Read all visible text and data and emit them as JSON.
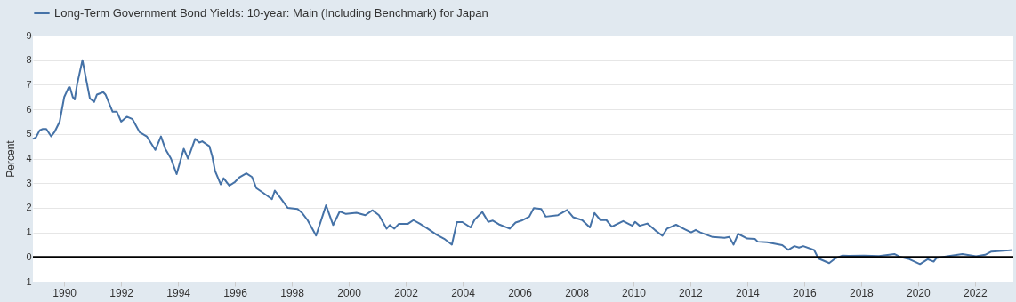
{
  "chart_data": {
    "type": "line",
    "ylabel": "Percent",
    "x": [
      1988.9,
      1989.0,
      1989.14,
      1989.25,
      1989.37,
      1989.54,
      1989.67,
      1989.84,
      1990.0,
      1990.16,
      1990.2,
      1990.3,
      1990.37,
      1990.45,
      1990.64,
      1990.9,
      1991.05,
      1991.15,
      1991.37,
      1991.45,
      1991.7,
      1991.85,
      1992.0,
      1992.2,
      1992.4,
      1992.65,
      1992.9,
      1993.2,
      1993.4,
      1993.55,
      1993.75,
      1993.95,
      1994.2,
      1994.35,
      1994.6,
      1994.75,
      1994.85,
      1995.1,
      1995.2,
      1995.3,
      1995.5,
      1995.6,
      1995.8,
      1996.0,
      1996.17,
      1996.4,
      1996.6,
      1996.75,
      1997.0,
      1997.3,
      1997.4,
      1997.6,
      1997.85,
      1998.2,
      1998.35,
      1998.55,
      1998.85,
      1999.2,
      1999.45,
      1999.68,
      1999.9,
      2000.27,
      2000.58,
      2000.83,
      2001.06,
      2001.33,
      2001.44,
      2001.6,
      2001.76,
      2002.08,
      2002.27,
      2002.5,
      2002.77,
      2003.09,
      2003.35,
      2003.62,
      2003.8,
      2003.99,
      2004.28,
      2004.42,
      2004.69,
      2004.9,
      2005.06,
      2005.27,
      2005.65,
      2005.86,
      2006.07,
      2006.34,
      2006.5,
      2006.76,
      2006.92,
      2007.35,
      2007.67,
      2007.88,
      2008.2,
      2008.47,
      2008.63,
      2008.84,
      2009.05,
      2009.24,
      2009.64,
      2009.96,
      2010.06,
      2010.22,
      2010.49,
      2010.76,
      2011.02,
      2011.18,
      2011.5,
      2011.82,
      2012.03,
      2012.19,
      2012.35,
      2012.78,
      2013.2,
      2013.37,
      2013.52,
      2013.68,
      2014.0,
      2014.27,
      2014.37,
      2014.7,
      2015.23,
      2015.44,
      2015.66,
      2015.82,
      2015.97,
      2016.35,
      2016.5,
      2016.88,
      2017.09,
      2017.35,
      2017.56,
      2018.1,
      2018.63,
      2019.17,
      2019.38,
      2019.7,
      2020.07,
      2020.34,
      2020.55,
      2020.65,
      2021.08,
      2021.56,
      2022.04,
      2022.36,
      2022.58,
      2023.0,
      2023.32
    ],
    "series": [
      {
        "name": "Long-Term Government Bond Yields: 10-year: Main (Including Benchmark) for Japan",
        "color": "#4572a7",
        "values": [
          4.8,
          4.85,
          5.15,
          5.2,
          5.2,
          4.9,
          5.1,
          5.5,
          6.5,
          6.9,
          6.9,
          6.5,
          6.4,
          7.0,
          8.0,
          6.45,
          6.3,
          6.6,
          6.7,
          6.6,
          5.9,
          5.9,
          5.5,
          5.7,
          5.6,
          5.07,
          4.9,
          4.35,
          4.9,
          4.4,
          4.0,
          3.37,
          4.4,
          4.0,
          4.8,
          4.65,
          4.7,
          4.5,
          4.1,
          3.5,
          2.95,
          3.2,
          2.9,
          3.05,
          3.25,
          3.4,
          3.25,
          2.8,
          2.6,
          2.35,
          2.7,
          2.4,
          2.0,
          1.95,
          1.8,
          1.5,
          0.87,
          2.1,
          1.3,
          1.85,
          1.75,
          1.8,
          1.7,
          1.9,
          1.7,
          1.15,
          1.3,
          1.15,
          1.35,
          1.35,
          1.5,
          1.35,
          1.15,
          0.9,
          0.74,
          0.5,
          1.42,
          1.42,
          1.2,
          1.52,
          1.83,
          1.43,
          1.48,
          1.33,
          1.15,
          1.4,
          1.48,
          1.64,
          1.99,
          1.95,
          1.64,
          1.7,
          1.91,
          1.62,
          1.5,
          1.2,
          1.79,
          1.5,
          1.5,
          1.23,
          1.46,
          1.27,
          1.43,
          1.27,
          1.36,
          1.09,
          0.86,
          1.15,
          1.31,
          1.12,
          1.0,
          1.1,
          1.0,
          0.81,
          0.78,
          0.81,
          0.5,
          0.94,
          0.75,
          0.73,
          0.62,
          0.6,
          0.48,
          0.29,
          0.44,
          0.38,
          0.44,
          0.28,
          -0.06,
          -0.25,
          -0.06,
          0.06,
          0.05,
          0.06,
          0.04,
          0.12,
          0.0,
          -0.09,
          -0.29,
          -0.09,
          -0.19,
          -0.04,
          0.04,
          0.12,
          0.03,
          0.09,
          0.22,
          0.25,
          0.28
        ]
      }
    ],
    "xlim": [
      1988.9,
      2023.35
    ],
    "xticks": [
      1990,
      1992,
      1994,
      1996,
      1998,
      2000,
      2002,
      2004,
      2006,
      2008,
      2010,
      2012,
      2014,
      2016,
      2018,
      2020,
      2022
    ],
    "ylim": [
      -1,
      9
    ],
    "yticks": [
      -1,
      0,
      1,
      2,
      3,
      4,
      5,
      6,
      7,
      8,
      9
    ],
    "grid": "y",
    "legend": "top left",
    "ref_lines": [
      {
        "axis": "y",
        "value": 0,
        "color": "#000000"
      }
    ]
  }
}
